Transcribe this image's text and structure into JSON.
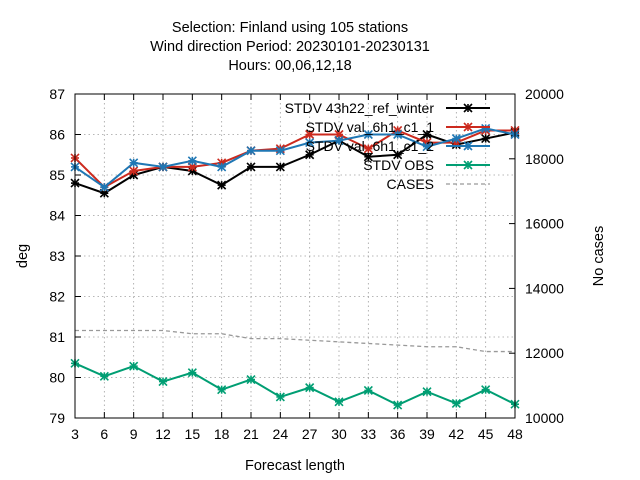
{
  "chart_data": {
    "type": "line",
    "title_lines": [
      "Selection: Finland using   105 stations",
      "Wind direction   Period: 20230101-20230131",
      "Hours:  00,06,12,18"
    ],
    "xlabel": "Forecast length",
    "ylabel": "deg",
    "y2label": "No cases",
    "x": [
      3,
      6,
      9,
      12,
      15,
      18,
      21,
      24,
      27,
      30,
      33,
      36,
      39,
      42,
      45,
      48
    ],
    "xlim": [
      3,
      48
    ],
    "ylim": [
      79,
      87
    ],
    "y2lim": [
      10000,
      20000
    ],
    "xticks": [
      3,
      6,
      9,
      12,
      15,
      18,
      21,
      24,
      27,
      30,
      33,
      36,
      39,
      42,
      45,
      48
    ],
    "yticks": [
      79,
      80,
      81,
      82,
      83,
      84,
      85,
      86,
      87
    ],
    "y2ticks": [
      10000,
      12000,
      14000,
      16000,
      18000,
      20000
    ],
    "grid": true,
    "legend_position": "top-right",
    "series": [
      {
        "name": "STDV 43h22_ref_winter",
        "axis": "y",
        "color": "#000000",
        "dashed": false,
        "values": [
          84.8,
          84.55,
          85.0,
          85.2,
          85.1,
          84.75,
          85.2,
          85.2,
          85.5,
          85.85,
          85.45,
          85.5,
          86.0,
          85.75,
          85.9,
          86.05
        ]
      },
      {
        "name": "STDV val_6h1_c1_1",
        "axis": "y",
        "color": "#cc2a1e",
        "dashed": false,
        "values": [
          85.42,
          84.7,
          85.1,
          85.2,
          85.2,
          85.3,
          85.6,
          85.65,
          86.0,
          86.0,
          85.65,
          86.1,
          85.8,
          85.8,
          86.1,
          86.1
        ]
      },
      {
        "name": "STDV val_6h1_c1_2",
        "axis": "y",
        "color": "#1f77b4",
        "dashed": false,
        "values": [
          85.2,
          84.7,
          85.3,
          85.2,
          85.35,
          85.2,
          85.6,
          85.6,
          85.8,
          85.85,
          86.0,
          86.0,
          85.7,
          85.9,
          86.15,
          86.0
        ]
      },
      {
        "name": "STDV OBS",
        "axis": "y",
        "color": "#009e73",
        "dashed": false,
        "values": [
          80.35,
          80.03,
          80.28,
          79.9,
          80.12,
          79.7,
          79.95,
          79.52,
          79.75,
          79.4,
          79.68,
          79.32,
          79.65,
          79.36,
          79.7,
          79.34
        ]
      },
      {
        "name": "CASES",
        "axis": "y2",
        "color": "#999999",
        "dashed": true,
        "values": [
          12700,
          12700,
          12700,
          12700,
          12600,
          12600,
          12450,
          12450,
          12400,
          12350,
          12300,
          12250,
          12200,
          12200,
          12050,
          12050
        ]
      }
    ]
  }
}
